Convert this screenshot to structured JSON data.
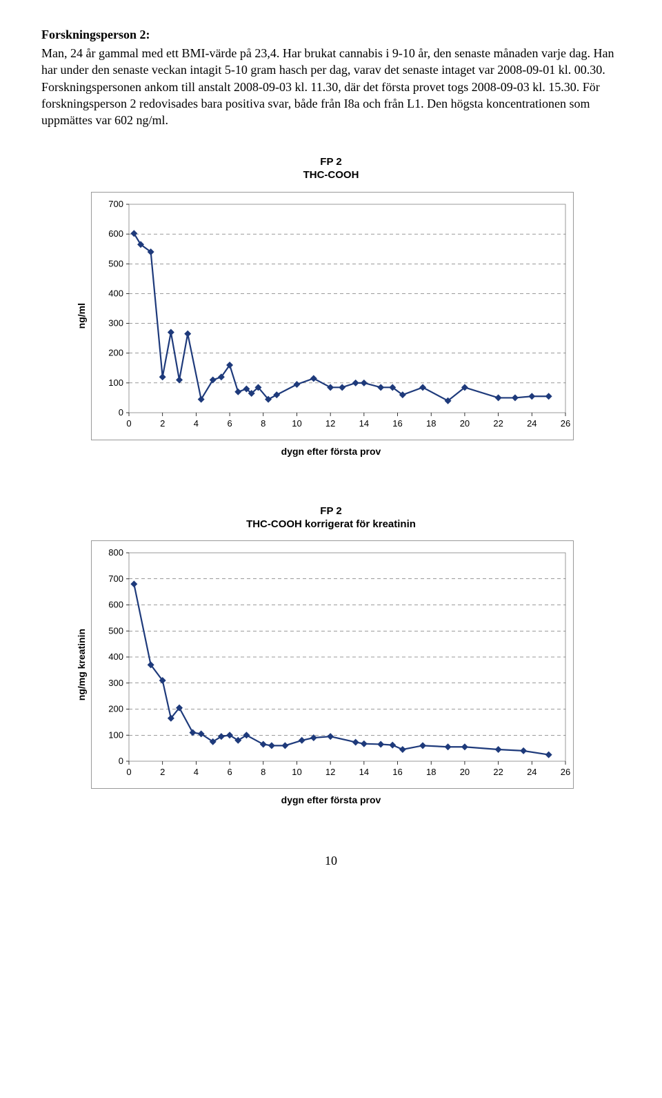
{
  "heading": "Forskningsperson 2:",
  "paragraph": "Man, 24 år gammal med ett BMI-värde på 23,4. Har brukat cannabis i 9-10 år, den senaste månaden varje dag. Han har under den senaste veckan intagit 5-10 gram hasch per dag, varav det senaste intaget var 2008-09-01 kl. 00.30. Forskningspersonen ankom till anstalt 2008-09-03 kl. 11.30, där det första provet togs 2008-09-03 kl. 15.30. För forskningsperson 2 redovisades bara positiva svar, både från I8a och från L1. Den högsta koncentrationen som uppmättes var 602 ng/ml.",
  "page_number": "10",
  "chart1": {
    "title": "FP 2\nTHC-COOH",
    "ylabel": "ng/ml",
    "xlabel": "dygn efter första prov",
    "series_color": "#1e3a7b",
    "marker_color": "#1e3a7b",
    "background": "#ffffff",
    "xlim": [
      0,
      26
    ],
    "ylim": [
      0,
      700
    ],
    "xtick_step": 2,
    "ytick_step": 100,
    "points": [
      [
        0.3,
        602
      ],
      [
        0.7,
        565
      ],
      [
        1.3,
        540
      ],
      [
        2.0,
        120
      ],
      [
        2.5,
        270
      ],
      [
        3.0,
        110
      ],
      [
        3.5,
        265
      ],
      [
        4.3,
        45
      ],
      [
        5.0,
        110
      ],
      [
        5.5,
        120
      ],
      [
        6.0,
        160
      ],
      [
        6.5,
        70
      ],
      [
        7.0,
        80
      ],
      [
        7.3,
        65
      ],
      [
        7.7,
        85
      ],
      [
        8.3,
        45
      ],
      [
        8.8,
        60
      ],
      [
        10.0,
        95
      ],
      [
        11.0,
        115
      ],
      [
        12.0,
        85
      ],
      [
        12.7,
        85
      ],
      [
        13.5,
        100
      ],
      [
        14.0,
        100
      ],
      [
        15.0,
        85
      ],
      [
        15.7,
        85
      ],
      [
        16.3,
        60
      ],
      [
        17.5,
        85
      ],
      [
        19.0,
        40
      ],
      [
        20.0,
        85
      ],
      [
        22.0,
        50
      ],
      [
        23.0,
        50
      ],
      [
        24.0,
        55
      ],
      [
        25.0,
        55
      ]
    ]
  },
  "chart2": {
    "title": "FP 2\nTHC-COOH korrigerat för kreatinin",
    "ylabel": "ng/mg kreatinin",
    "xlabel": "dygn efter första prov",
    "series_color": "#1e3a7b",
    "marker_color": "#1e3a7b",
    "background": "#ffffff",
    "xlim": [
      0,
      26
    ],
    "ylim": [
      0,
      800
    ],
    "xtick_step": 2,
    "ytick_step": 100,
    "points": [
      [
        0.3,
        680
      ],
      [
        1.3,
        370
      ],
      [
        2.0,
        310
      ],
      [
        2.5,
        165
      ],
      [
        3.0,
        205
      ],
      [
        3.8,
        110
      ],
      [
        4.3,
        105
      ],
      [
        5.0,
        75
      ],
      [
        5.5,
        95
      ],
      [
        6.0,
        100
      ],
      [
        6.5,
        80
      ],
      [
        7.0,
        100
      ],
      [
        8.0,
        65
      ],
      [
        8.5,
        60
      ],
      [
        9.3,
        60
      ],
      [
        10.3,
        80
      ],
      [
        11.0,
        90
      ],
      [
        12.0,
        95
      ],
      [
        13.5,
        73
      ],
      [
        14.0,
        67
      ],
      [
        15.0,
        65
      ],
      [
        15.7,
        62
      ],
      [
        16.3,
        45
      ],
      [
        17.5,
        60
      ],
      [
        19.0,
        55
      ],
      [
        20.0,
        55
      ],
      [
        22.0,
        45
      ],
      [
        23.5,
        40
      ],
      [
        25.0,
        25
      ]
    ]
  }
}
